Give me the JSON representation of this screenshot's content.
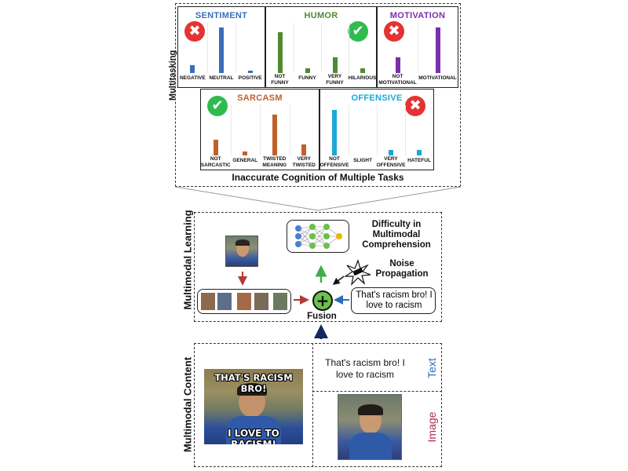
{
  "multitasking": {
    "side_label": "Multitasking",
    "caption": "Inaccurate Cognition of Multiple Tasks",
    "panels": [
      {
        "title": "SENTIMENT",
        "color": "#3a6fb8",
        "status": "wrong",
        "categories": [
          "NEGATIVE",
          "NEUTRAL",
          "POSITIVE"
        ],
        "values": [
          0.18,
          1.0,
          0.06
        ]
      },
      {
        "title": "HUMOR",
        "color": "#4f8a2e",
        "status": "correct",
        "categories": [
          "NOT FUNNY",
          "FUNNY",
          "VERY FUNNY",
          "HILARIOUS"
        ],
        "values": [
          0.9,
          0.1,
          0.35,
          0.1
        ]
      },
      {
        "title": "MOTIVATION",
        "color": "#7b2fa8",
        "status": "wrong",
        "categories": [
          "NOT MOTIVATIONAL",
          "MOTIVATIONAL"
        ],
        "values": [
          0.35,
          1.0
        ]
      },
      {
        "title": "SARCASM",
        "color": "#c0602a",
        "status": "correct",
        "categories": [
          "NOT SARCASTIC",
          "GENERAL",
          "TWISTED MEANING",
          "VERY TWISTED"
        ],
        "values": [
          0.35,
          0.08,
          0.9,
          0.25
        ]
      },
      {
        "title": "OFFENSIVE",
        "color": "#1aa8d8",
        "status": "wrong",
        "categories": [
          "NOT OFFENSIVE",
          "SLIGHT",
          "VERY OFFENSIVE",
          "HATEFUL"
        ],
        "values": [
          1.0,
          0.0,
          0.12,
          0.12
        ]
      }
    ]
  },
  "learning": {
    "side_label": "Multimodal Learning",
    "difficulty": "Difficulty in Multimodal Comprehension",
    "noise": "Noise Propagation",
    "fusion_label": "Fusion",
    "fusion_symbol": "+",
    "text_box": "That's racism bro! I love to racism"
  },
  "content": {
    "side_label": "Multimodal Content",
    "meme_top": "THAT'S RACISM BRO!",
    "meme_bottom": "I LOVE TO RACISM!",
    "text_value": "That's racism bro! I love to racism",
    "text_tag": "Text",
    "image_tag": "Image",
    "text_tag_color": "#2b6cb8",
    "image_tag_color": "#b02a4a"
  },
  "icons": {
    "correct": "✔",
    "wrong": "✖"
  }
}
